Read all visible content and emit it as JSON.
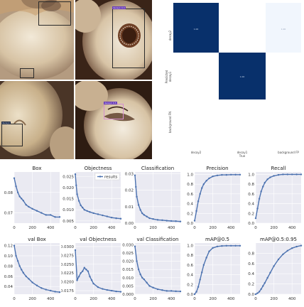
{
  "photos": {
    "tiles": [
      {
        "name": "photo-tile-top-left"
      },
      {
        "name": "photo-tile-top-right",
        "labels": [
          "decay1 0.3"
        ]
      },
      {
        "name": "photo-tile-bottom-left",
        "labels": [
          "decay1"
        ]
      },
      {
        "name": "photo-tile-bottom-right",
        "labels": [
          "decay1 0.5"
        ]
      }
    ]
  },
  "confusion_matrix": {
    "ylabel": "Predicted",
    "xlabel": "True",
    "x_ticks": [
      "decay2",
      "decay1",
      "background FP"
    ],
    "y_ticks": [
      "decay2",
      "decay1",
      "background FN"
    ],
    "colors": {
      "high": "#08306b",
      "low": "#f7fbff",
      "empty": "#ffffff"
    }
  },
  "chart_data": [
    {
      "type": "line",
      "title": "Box",
      "xlim": [
        0,
        500
      ],
      "ylim": [
        0.065,
        0.09
      ],
      "yticks": [
        "0.07",
        "0.08"
      ],
      "xticks": [
        "0",
        "200",
        "400"
      ],
      "series": [
        {
          "name": "results",
          "x": [
            0,
            20,
            40,
            60,
            80,
            100,
            130,
            160,
            200,
            250,
            300,
            350,
            400,
            450,
            500
          ],
          "values": [
            0.087,
            0.083,
            0.08,
            0.078,
            0.077,
            0.076,
            0.074,
            0.073,
            0.072,
            0.071,
            0.07,
            0.069,
            0.069,
            0.068,
            0.068
          ]
        }
      ]
    },
    {
      "type": "line",
      "title": "Objectness",
      "xlim": [
        0,
        500
      ],
      "ylim": [
        0.004,
        0.027
      ],
      "yticks": [
        "0.005",
        "0.010",
        "0.015",
        "0.020",
        "0.025"
      ],
      "xticks": [
        "0",
        "200",
        "400"
      ],
      "legend": "results",
      "legend_position": "top-right",
      "series": [
        {
          "name": "results",
          "x": [
            0,
            10,
            20,
            40,
            60,
            80,
            100,
            130,
            160,
            200,
            250,
            300,
            350,
            400,
            450,
            500
          ],
          "values": [
            0.026,
            0.021,
            0.017,
            0.014,
            0.012,
            0.011,
            0.01,
            0.0095,
            0.009,
            0.0085,
            0.008,
            0.0075,
            0.007,
            0.0065,
            0.0062,
            0.006
          ]
        }
      ]
    },
    {
      "type": "line",
      "title": "Classification",
      "xlim": [
        0,
        500
      ],
      "ylim": [
        0,
        0.031
      ],
      "yticks": [
        "0.00",
        "0.01",
        "0.02",
        "0.03"
      ],
      "xticks": [
        "0",
        "200",
        "400"
      ],
      "series": [
        {
          "name": "results",
          "x": [
            0,
            10,
            20,
            40,
            60,
            80,
            100,
            130,
            160,
            200,
            250,
            300,
            350,
            400,
            450,
            500
          ],
          "values": [
            0.029,
            0.022,
            0.016,
            0.011,
            0.008,
            0.006,
            0.005,
            0.004,
            0.003,
            0.0025,
            0.002,
            0.0018,
            0.0015,
            0.0013,
            0.0012,
            0.001
          ]
        }
      ]
    },
    {
      "type": "line",
      "title": "Precision",
      "xlim": [
        0,
        500
      ],
      "ylim": [
        0,
        1.05
      ],
      "yticks": [
        "0.0",
        "0.2",
        "0.4",
        "0.6",
        "0.8",
        "1.0"
      ],
      "xticks": [
        "0",
        "200",
        "400"
      ],
      "series": [
        {
          "name": "results",
          "x": [
            0,
            20,
            40,
            60,
            80,
            100,
            130,
            160,
            200,
            250,
            300,
            350,
            400,
            450,
            500
          ],
          "values": [
            0.05,
            0.25,
            0.45,
            0.6,
            0.72,
            0.8,
            0.87,
            0.92,
            0.96,
            0.98,
            0.99,
            0.99,
            0.995,
            0.995,
            0.995
          ]
        }
      ]
    },
    {
      "type": "line",
      "title": "Recall",
      "xlim": [
        0,
        500
      ],
      "ylim": [
        0,
        1.05
      ],
      "yticks": [
        "0.0",
        "0.2",
        "0.4",
        "0.6",
        "0.8",
        "1.0"
      ],
      "xticks": [
        "0",
        "200",
        "400"
      ],
      "series": [
        {
          "name": "results",
          "x": [
            0,
            20,
            40,
            60,
            80,
            100,
            130,
            160,
            200,
            250,
            300,
            350,
            400,
            450,
            500
          ],
          "values": [
            0.1,
            0.3,
            0.5,
            0.65,
            0.75,
            0.83,
            0.9,
            0.94,
            0.97,
            0.99,
            1.0,
            1.0,
            1.0,
            1.0,
            1.0
          ]
        }
      ]
    },
    {
      "type": "line",
      "title": "val Box",
      "xlim": [
        0,
        500
      ],
      "ylim": [
        0.025,
        0.125
      ],
      "yticks": [
        "0.04",
        "0.06",
        "0.08",
        "0.10",
        "0.12"
      ],
      "xticks": [
        "0",
        "200",
        "400"
      ],
      "series": [
        {
          "name": "results",
          "x": [
            0,
            20,
            40,
            60,
            80,
            100,
            130,
            160,
            200,
            250,
            300,
            350,
            400,
            450,
            500
          ],
          "values": [
            0.12,
            0.1,
            0.09,
            0.08,
            0.073,
            0.067,
            0.06,
            0.055,
            0.048,
            0.042,
            0.037,
            0.034,
            0.032,
            0.03,
            0.029
          ]
        }
      ]
    },
    {
      "type": "line",
      "title": "val Objectness",
      "xlim": [
        0,
        500
      ],
      "ylim": [
        0.0165,
        0.031
      ],
      "yticks": [
        "0.0175",
        "0.0200",
        "0.0225",
        "0.0250",
        "0.0275",
        "0.0300"
      ],
      "xticks": [
        "0",
        "200",
        "400"
      ],
      "series": [
        {
          "name": "results",
          "x": [
            0,
            20,
            40,
            60,
            80,
            100,
            120,
            140,
            160,
            180,
            200,
            250,
            300,
            350,
            400,
            450,
            500
          ],
          "values": [
            0.029,
            0.0205,
            0.0215,
            0.0225,
            0.023,
            0.024,
            0.0235,
            0.023,
            0.0215,
            0.0205,
            0.0195,
            0.0185,
            0.018,
            0.0177,
            0.0175,
            0.0173,
            0.0172
          ]
        }
      ]
    },
    {
      "type": "line",
      "title": "val Classification",
      "xlim": [
        0,
        500
      ],
      "ylim": [
        0,
        0.031
      ],
      "yticks": [
        "0.000",
        "0.005",
        "0.010",
        "0.015",
        "0.020",
        "0.025",
        "0.030"
      ],
      "xticks": [
        "0",
        "200",
        "400"
      ],
      "series": [
        {
          "name": "results",
          "x": [
            0,
            20,
            40,
            60,
            80,
            100,
            130,
            160,
            200,
            250,
            300,
            350,
            400,
            450,
            500
          ],
          "values": [
            0.029,
            0.02,
            0.015,
            0.012,
            0.01,
            0.009,
            0.007,
            0.005,
            0.004,
            0.003,
            0.0025,
            0.002,
            0.002,
            0.0018,
            0.0017
          ]
        }
      ]
    },
    {
      "type": "line",
      "title": "mAP@0.5",
      "xlim": [
        0,
        500
      ],
      "ylim": [
        0,
        1.05
      ],
      "yticks": [
        "0.0",
        "0.2",
        "0.4",
        "0.6",
        "0.8",
        "1.0"
      ],
      "xticks": [
        "0",
        "200",
        "400"
      ],
      "series": [
        {
          "name": "results",
          "x": [
            0,
            20,
            40,
            60,
            80,
            100,
            130,
            160,
            200,
            250,
            300,
            350,
            400,
            450,
            500
          ],
          "values": [
            0.0,
            0.05,
            0.15,
            0.3,
            0.45,
            0.6,
            0.75,
            0.88,
            0.95,
            0.98,
            0.99,
            0.995,
            0.995,
            0.995,
            0.995
          ]
        }
      ]
    },
    {
      "type": "line",
      "title": "mAP@0.5:0.95",
      "xlim": [
        0,
        500
      ],
      "ylim": [
        0,
        1.0
      ],
      "yticks": [
        "0.0",
        "0.2",
        "0.4",
        "0.6",
        "0.8"
      ],
      "xticks": [
        "0",
        "200",
        "400"
      ],
      "series": [
        {
          "name": "results",
          "x": [
            0,
            20,
            40,
            60,
            80,
            100,
            130,
            160,
            200,
            250,
            300,
            350,
            400,
            450,
            500
          ],
          "values": [
            0.0,
            0.02,
            0.05,
            0.1,
            0.16,
            0.22,
            0.32,
            0.42,
            0.55,
            0.68,
            0.78,
            0.85,
            0.9,
            0.93,
            0.95
          ]
        }
      ]
    }
  ]
}
